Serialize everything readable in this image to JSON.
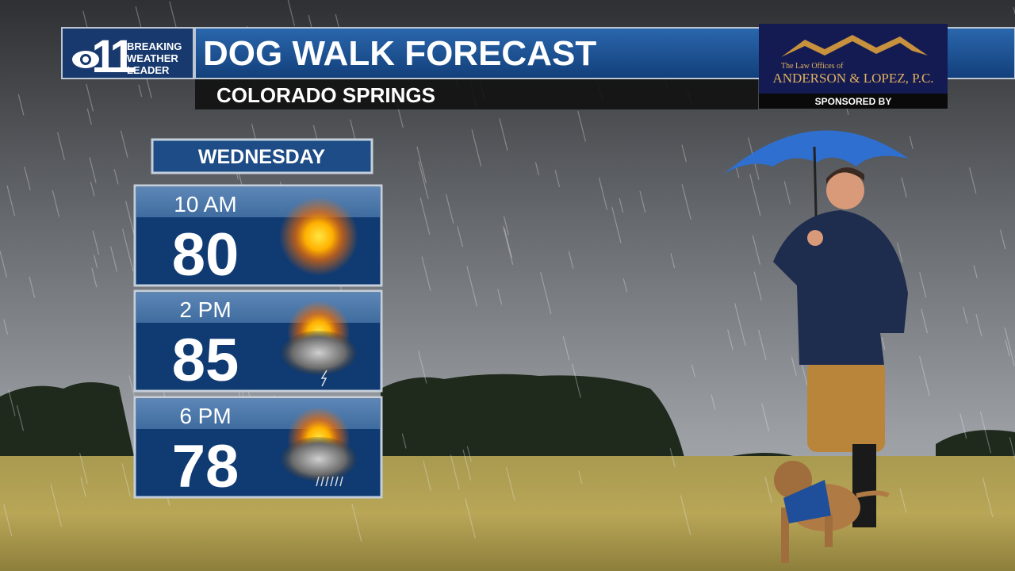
{
  "header": {
    "logo_number": "11",
    "logo_lines": [
      "BREAKING",
      "WEATHER",
      "LEADER"
    ],
    "title": "DOG WALK FORECAST",
    "location": "COLORADO SPRINGS"
  },
  "sponsor": {
    "intro": "The Law Offices of",
    "name": "ANDERSON & LOPEZ, P.C.",
    "label": "SPONSORED BY"
  },
  "forecast": {
    "day": "WEDNESDAY",
    "periods": [
      {
        "time": "10 AM",
        "temp": 80
      },
      {
        "time": "2 PM",
        "temp": 85
      },
      {
        "time": "6 PM",
        "temp": 78
      }
    ]
  }
}
